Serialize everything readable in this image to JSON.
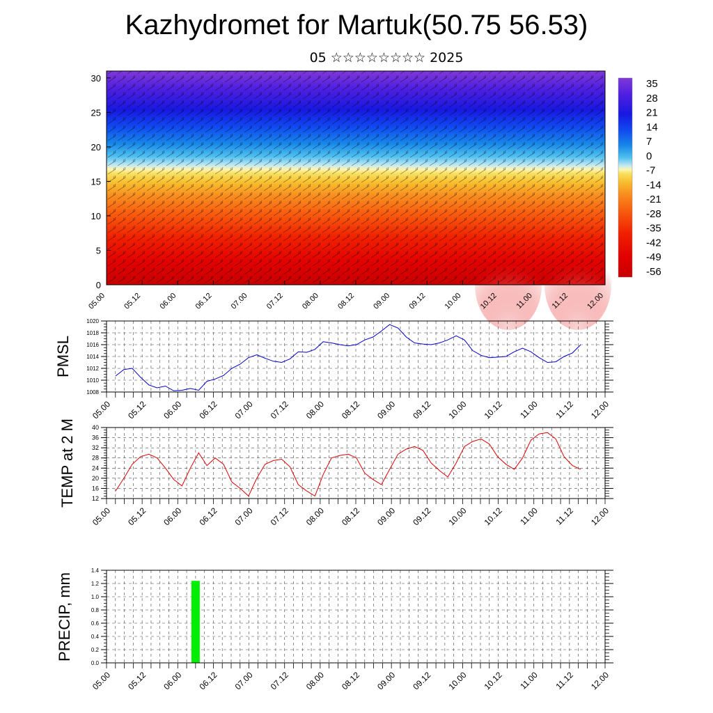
{
  "header": {
    "title": "Kazhydromet for Martuk(50.75 56.53)",
    "subtitle": "05 ☆☆☆☆☆☆☆☆ 2025"
  },
  "chart_data": [
    {
      "type": "heatmap",
      "title": "",
      "xlabel": "",
      "ylabel": "",
      "x_ticks": [
        "05.00",
        "05.12",
        "06.00",
        "06.12",
        "07.00",
        "07.12",
        "08.00",
        "08.12",
        "09.00",
        "09.12",
        "10.00",
        "10.12",
        "11.00",
        "11.12",
        "12.00"
      ],
      "y_ticks": [
        0,
        5,
        10,
        15,
        20,
        25,
        30
      ],
      "ylim": [
        0,
        31
      ],
      "colorbar_labels": [
        "35",
        "28",
        "21",
        "14",
        "7",
        "0",
        "-7",
        "-14",
        "-21",
        "-28",
        "-35",
        "-42",
        "-49",
        "-56"
      ],
      "colorbar_colors": [
        "#f8d8d8",
        "#f03020",
        "#e00000",
        "#f04010",
        "#f87818",
        "#f8a028",
        "#f8d848",
        "#fff8b0",
        "#b8e8f8",
        "#28b8f0",
        "#1870e8",
        "#1030f0",
        "#4818e8",
        "#8840e0"
      ],
      "overlay": "wind barbs"
    },
    {
      "type": "line",
      "ylabel": "PMSL",
      "ylim": [
        1008,
        1020
      ],
      "y_ticks": [
        1008,
        1010,
        1012,
        1014,
        1016,
        1018,
        1020
      ],
      "x_ticks": [
        "05.00",
        "05.12",
        "06.00",
        "06.12",
        "07.00",
        "07.12",
        "08.00",
        "08.12",
        "09.00",
        "09.12",
        "10.00",
        "10.12",
        "11.00",
        "11.12",
        "12.00"
      ],
      "series": [
        {
          "color": "#0000cc",
          "values": [
            1010.7,
            1011.8,
            1012.0,
            1010.5,
            1009.2,
            1008.7,
            1009.0,
            1008.2,
            1008.3,
            1008.6,
            1008.3,
            1009.8,
            1010.2,
            1010.8,
            1012.0,
            1012.7,
            1013.8,
            1014.3,
            1013.7,
            1013.2,
            1013.0,
            1013.6,
            1014.8,
            1014.7,
            1015.2,
            1016.5,
            1016.3,
            1016.0,
            1015.8,
            1016.0,
            1016.8,
            1017.3,
            1018.3,
            1019.4,
            1018.8,
            1017.3,
            1016.3,
            1016.1,
            1016.0,
            1016.3,
            1016.8,
            1017.5,
            1016.8,
            1015.0,
            1014.2,
            1013.8,
            1013.9,
            1014.0,
            1014.8,
            1015.4,
            1014.8,
            1013.8,
            1013.0,
            1013.1,
            1014.0,
            1014.6,
            1016.0
          ]
        }
      ]
    },
    {
      "type": "line",
      "ylabel": "TEMP at 2 M",
      "ylim": [
        12,
        40
      ],
      "y_ticks": [
        12,
        16,
        20,
        24,
        28,
        32,
        36,
        40
      ],
      "x_ticks": [
        "05.00",
        "05.12",
        "06.00",
        "06.12",
        "07.00",
        "07.12",
        "08.00",
        "08.12",
        "09.00",
        "09.12",
        "10.00",
        "10.12",
        "11.00",
        "11.12",
        "12.00"
      ],
      "series": [
        {
          "color": "#dd0000",
          "values": [
            15.0,
            20.0,
            25.5,
            28.5,
            29.5,
            28.0,
            24.0,
            19.5,
            17.0,
            24.0,
            30.0,
            25.0,
            28.0,
            25.5,
            18.5,
            16.0,
            13.0,
            20.0,
            25.5,
            27.0,
            27.5,
            24.5,
            17.5,
            15.0,
            13.0,
            21.5,
            28.0,
            29.0,
            29.5,
            28.0,
            22.0,
            19.5,
            17.5,
            23.5,
            29.5,
            31.5,
            32.5,
            31.0,
            26.0,
            23.0,
            20.5,
            26.0,
            32.5,
            34.5,
            35.5,
            33.5,
            28.5,
            25.5,
            23.5,
            28.0,
            35.0,
            37.5,
            38.0,
            35.5,
            28.5,
            25.0,
            23.5
          ]
        }
      ]
    },
    {
      "type": "bar",
      "ylabel": "PRECIP, mm",
      "ylim": [
        0,
        1.4
      ],
      "y_ticks": [
        "0.0",
        "0.2",
        "0.4",
        "0.6",
        "0.8",
        "1.0",
        "1.2",
        "1.4"
      ],
      "x_ticks": [
        "05.00",
        "05.12",
        "06.00",
        "06.12",
        "07.00",
        "07.12",
        "08.00",
        "08.12",
        "09.00",
        "09.12",
        "10.00",
        "10.12",
        "11.00",
        "11.12",
        "12.00"
      ],
      "bars": [
        {
          "x": "06.06",
          "value": 1.24,
          "color": "#00ee00"
        }
      ]
    }
  ]
}
